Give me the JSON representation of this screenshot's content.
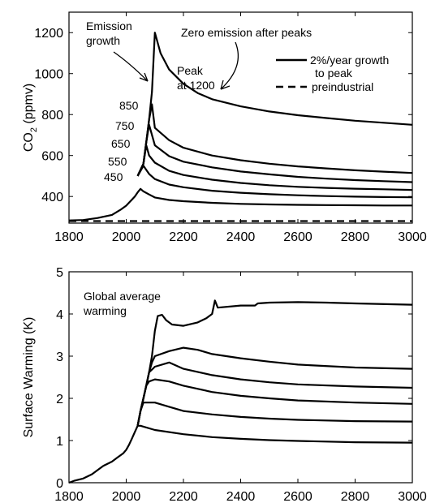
{
  "chart_data": [
    {
      "type": "line",
      "title": "",
      "xlabel": "",
      "ylabel": "CO2 (ppmv)",
      "ylabel_main": "CO",
      "ylabel_sub": "2",
      "ylabel_unit": " (ppmv)",
      "xlim": [
        1800,
        3000
      ],
      "ylim": [
        270,
        1300
      ],
      "x_ticks": [
        1800,
        2000,
        2200,
        2400,
        2600,
        2800,
        3000
      ],
      "y_ticks": [
        400,
        600,
        800,
        1000,
        1200
      ],
      "grid": false,
      "annotations": {
        "emission_line1": "Emission",
        "emission_line2": "growth",
        "zero_emission": "Zero emission after peaks",
        "peak_line1": "Peak",
        "peak_line2": "at 1200"
      },
      "legend": {
        "placement": "top-right",
        "entries": [
          {
            "label_line1": "2%/year growth",
            "label_line2": "to peak",
            "style": "solid"
          },
          {
            "label_line1": "preindustrial",
            "label_line2": "",
            "style": "dashed"
          }
        ]
      },
      "series": [
        {
          "name": "450",
          "style": "solid",
          "x": [
            1800,
            1850,
            1900,
            1950,
            1980,
            2000,
            2010,
            2020,
            2030,
            2040,
            2050,
            2060,
            2080,
            2100,
            2150,
            2200,
            2300,
            2400,
            2500,
            2600,
            2700,
            2800,
            2900,
            3000
          ],
          "y": [
            283,
            285,
            295,
            310,
            335,
            355,
            370,
            385,
            400,
            420,
            437,
            425,
            410,
            395,
            383,
            377,
            369,
            364,
            361,
            359,
            358,
            357,
            356,
            356
          ]
        },
        {
          "name": "550",
          "style": "solid",
          "x": [
            2040,
            2060,
            2070,
            2080,
            2100,
            2150,
            2200,
            2300,
            2400,
            2500,
            2600,
            2700,
            2800,
            2900,
            3000
          ],
          "y": [
            500,
            550,
            530,
            510,
            485,
            458,
            445,
            428,
            418,
            411,
            406,
            402,
            399,
            397,
            396
          ]
        },
        {
          "name": "650",
          "style": "solid",
          "x": [
            2040,
            2060,
            2070,
            2080,
            2100,
            2150,
            2200,
            2300,
            2400,
            2500,
            2600,
            2700,
            2800,
            2900,
            3000
          ],
          "y": [
            500,
            560,
            650,
            600,
            565,
            525,
            505,
            482,
            466,
            455,
            447,
            442,
            438,
            435,
            432
          ]
        },
        {
          "name": "750",
          "style": "solid",
          "x": [
            2040,
            2060,
            2070,
            2080,
            2100,
            2150,
            2200,
            2300,
            2400,
            2500,
            2600,
            2700,
            2800,
            2900,
            3000
          ],
          "y": [
            500,
            560,
            665,
            750,
            650,
            597,
            570,
            542,
            522,
            508,
            496,
            487,
            480,
            475,
            470
          ]
        },
        {
          "name": "850",
          "style": "solid",
          "x": [
            2040,
            2060,
            2070,
            2080,
            2090,
            2100,
            2150,
            2200,
            2300,
            2400,
            2500,
            2600,
            2700,
            2800,
            2900,
            3000
          ],
          "y": [
            500,
            560,
            665,
            775,
            850,
            735,
            675,
            638,
            600,
            577,
            560,
            547,
            537,
            528,
            521,
            515
          ]
        },
        {
          "name": "1200",
          "style": "solid",
          "x": [
            2040,
            2060,
            2070,
            2080,
            2090,
            2100,
            2120,
            2150,
            2200,
            2250,
            2300,
            2400,
            2500,
            2600,
            2700,
            2800,
            2900,
            3000
          ],
          "y": [
            500,
            560,
            665,
            775,
            910,
            1200,
            1100,
            1020,
            950,
            905,
            875,
            840,
            815,
            797,
            783,
            770,
            760,
            750
          ]
        },
        {
          "name": "preindustrial",
          "style": "dashed",
          "x": [
            1800,
            3000
          ],
          "y": [
            280,
            280
          ]
        }
      ]
    },
    {
      "type": "line",
      "title": "",
      "xlabel": "",
      "ylabel": "Surface Warming (K)",
      "xlim": [
        1800,
        3000
      ],
      "ylim": [
        0,
        5
      ],
      "x_ticks": [
        1800,
        2000,
        2200,
        2400,
        2600,
        2800,
        3000
      ],
      "y_ticks": [
        0,
        1,
        2,
        3,
        4,
        5
      ],
      "grid": false,
      "annotations": {
        "warming_line1": "Global average",
        "warming_line2": "warming"
      },
      "series": [
        {
          "name": "450",
          "style": "solid",
          "x": [
            1800,
            1820,
            1850,
            1880,
            1900,
            1920,
            1950,
            1970,
            1990,
            2000,
            2010,
            2020,
            2030,
            2040,
            2050,
            2100,
            2200,
            2300,
            2400,
            2500,
            2600,
            2800,
            3000
          ],
          "y": [
            0.0,
            0.05,
            0.1,
            0.2,
            0.3,
            0.4,
            0.5,
            0.6,
            0.7,
            0.78,
            0.9,
            1.05,
            1.2,
            1.35,
            1.35,
            1.25,
            1.15,
            1.08,
            1.04,
            1.01,
            0.99,
            0.96,
            0.95
          ]
        },
        {
          "name": "550",
          "style": "solid",
          "x": [
            2040,
            2050,
            2060,
            2080,
            2100,
            2150,
            2200,
            2300,
            2400,
            2500,
            2600,
            2800,
            3000
          ],
          "y": [
            1.35,
            1.7,
            1.9,
            1.9,
            1.9,
            1.8,
            1.7,
            1.62,
            1.56,
            1.52,
            1.49,
            1.46,
            1.45
          ]
        },
        {
          "name": "650",
          "style": "solid",
          "x": [
            2040,
            2050,
            2060,
            2070,
            2080,
            2100,
            2150,
            2200,
            2300,
            2400,
            2500,
            2600,
            2800,
            3000
          ],
          "y": [
            1.35,
            1.7,
            2.0,
            2.3,
            2.4,
            2.45,
            2.4,
            2.3,
            2.15,
            2.06,
            2.0,
            1.95,
            1.9,
            1.87
          ]
        },
        {
          "name": "750",
          "style": "solid",
          "x": [
            2040,
            2050,
            2060,
            2070,
            2080,
            2090,
            2100,
            2150,
            2200,
            2300,
            2400,
            2500,
            2600,
            2800,
            3000
          ],
          "y": [
            1.35,
            1.7,
            2.0,
            2.3,
            2.62,
            2.68,
            2.75,
            2.85,
            2.7,
            2.55,
            2.45,
            2.38,
            2.33,
            2.28,
            2.25
          ]
        },
        {
          "name": "850",
          "style": "solid",
          "x": [
            2040,
            2050,
            2060,
            2070,
            2080,
            2090,
            2100,
            2150,
            2200,
            2250,
            2300,
            2400,
            2500,
            2600,
            2800,
            3000
          ],
          "y": [
            1.35,
            1.7,
            2.0,
            2.3,
            2.62,
            2.85,
            3.0,
            3.12,
            3.2,
            3.15,
            3.05,
            2.95,
            2.87,
            2.8,
            2.73,
            2.7
          ]
        },
        {
          "name": "1200",
          "style": "solid",
          "x": [
            2040,
            2050,
            2060,
            2070,
            2080,
            2090,
            2100,
            2110,
            2125,
            2140,
            2160,
            2200,
            2250,
            2280,
            2300,
            2310,
            2320,
            2400,
            2450,
            2460,
            2500,
            2600,
            2700,
            2800,
            3000
          ],
          "y": [
            1.35,
            1.7,
            2.0,
            2.3,
            2.62,
            3.0,
            3.6,
            3.95,
            3.98,
            3.85,
            3.75,
            3.72,
            3.8,
            3.9,
            4.0,
            4.32,
            4.15,
            4.2,
            4.2,
            4.25,
            4.27,
            4.28,
            4.27,
            4.25,
            4.22
          ]
        }
      ]
    }
  ]
}
